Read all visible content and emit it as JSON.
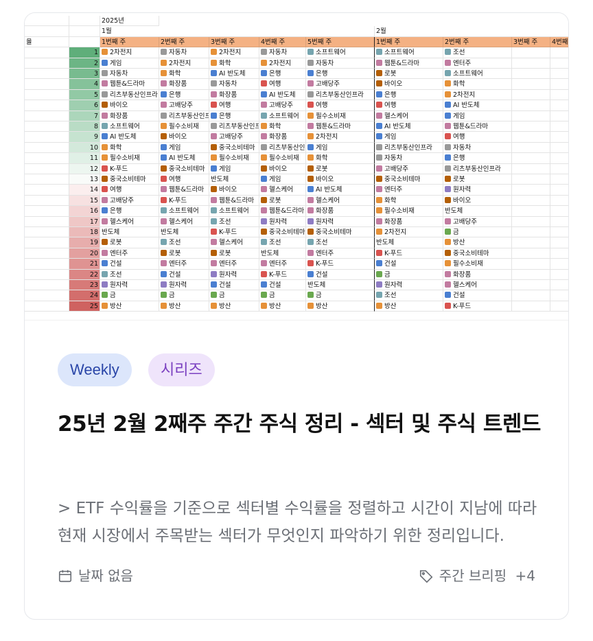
{
  "sheet": {
    "year": "2025년",
    "left_header": "율",
    "months": [
      "1월",
      "2월"
    ],
    "week_headers": [
      "1번째 주",
      "2번째 주",
      "3번째 주",
      "4번째 주",
      "5번째 주",
      "1번째 주",
      "2번째 주",
      "3번째 주",
      "4번째 주"
    ],
    "rank_colors": [
      "#5fae7a",
      "#6cb585",
      "#78bb8f",
      "#85c29a",
      "#92c9a5",
      "#9fcfb0",
      "#acd6bb",
      "#b9dcc5",
      "#c6e3d0",
      "#d3e9db",
      "#e0f0e6",
      "#edf6f0",
      "#f9fbf9",
      "#fbeeee",
      "#f7e1e1",
      "#f3d4d4",
      "#efc7c6",
      "#ebbab9",
      "#e7adac",
      "#e3a09f",
      "#df9392",
      "#db8685",
      "#d77a78",
      "#d36e6c",
      "#cf6260"
    ],
    "rows": [
      [
        "1",
        "2차전지",
        "자동차",
        "2차전지",
        "자동차",
        "소프트웨어",
        "소프트웨어",
        "조선"
      ],
      [
        "2",
        "게임",
        "2차전지",
        "화학",
        "2차전지",
        "자동차",
        "웹툰&드라마",
        "엔터주"
      ],
      [
        "3",
        "자동차",
        "화학",
        "AI 반도체",
        "은행",
        "은행",
        "로봇",
        "소프트웨어"
      ],
      [
        "4",
        "웹툰&드라마",
        "화장품",
        "자동차",
        "여행",
        "고배당주",
        "바이오",
        "화학"
      ],
      [
        "5",
        "리츠부동산인프라",
        "은행",
        "화장품",
        "AI 반도체",
        "리츠부동산인프라",
        "은행",
        "2차전지"
      ],
      [
        "6",
        "바이오",
        "고배당주",
        "여행",
        "고배당주",
        "여행",
        "여행",
        "AI 반도체"
      ],
      [
        "7",
        "화장품",
        "리츠부동산인프라",
        "은행",
        "소프트웨어",
        "필수소비재",
        "헬스케어",
        "게임"
      ],
      [
        "8",
        "소프트웨어",
        "필수소비재",
        "리츠부동산인프라",
        "화학",
        "웹툰&드라마",
        "AI 반도체",
        "웹툰&드라마"
      ],
      [
        "9",
        "AI 반도체",
        "바이오",
        "고배당주",
        "화장품",
        "2차전지",
        "게임",
        "여행"
      ],
      [
        "10",
        "화학",
        "게임",
        "중국소비테마",
        "리츠부동산인프라",
        "게임",
        "리츠부동산인프라",
        "자동차"
      ],
      [
        "11",
        "필수소비재",
        "AI 반도체",
        "필수소비재",
        "필수소비재",
        "화학",
        "자동차",
        "은행"
      ],
      [
        "12",
        "K-푸드",
        "중국소비테마",
        "게임",
        "바이오",
        "로봇",
        "고배당주",
        "리츠부동산인프라"
      ],
      [
        "13",
        "중국소비테마",
        "여행",
        "반도체",
        "게임",
        "바이오",
        "중국소비테마",
        "로봇"
      ],
      [
        "14",
        "여행",
        "웹툰&드라마",
        "바이오",
        "헬스케어",
        "AI 반도체",
        "엔터주",
        "원자력"
      ],
      [
        "15",
        "고배당주",
        "K-푸드",
        "웹툰&드라마",
        "로봇",
        "헬스케어",
        "화학",
        "바이오"
      ],
      [
        "16",
        "은행",
        "소프트웨어",
        "소프트웨어",
        "웹툰&드라마",
        "화장품",
        "필수소비재",
        "반도체"
      ],
      [
        "17",
        "헬스케어",
        "헬스케어",
        "조선",
        "원자력",
        "원자력",
        "화장품",
        "고배당주"
      ],
      [
        "18",
        "반도체",
        "반도체",
        "K-푸드",
        "중국소비테마",
        "중국소비테마",
        "2차전지",
        "금"
      ],
      [
        "19",
        "로봇",
        "조선",
        "헬스케어",
        "조선",
        "조선",
        "반도체",
        "방산"
      ],
      [
        "20",
        "엔터주",
        "로봇",
        "로봇",
        "반도체",
        "엔터주",
        "K-푸드",
        "중국소비테마"
      ],
      [
        "21",
        "건설",
        "엔터주",
        "엔터주",
        "엔터주",
        "K-푸드",
        "건설",
        "필수소비재"
      ],
      [
        "22",
        "조선",
        "건설",
        "원자력",
        "K-푸드",
        "건설",
        "금",
        "화장품"
      ],
      [
        "23",
        "원자력",
        "원자력",
        "건설",
        "건설",
        "반도체",
        "원자력",
        "헬스케어"
      ],
      [
        "24",
        "금",
        "금",
        "금",
        "금",
        "금",
        "조선",
        "건설"
      ],
      [
        "25",
        "방산",
        "방산",
        "방산",
        "방산",
        "방산",
        "방산",
        "K-푸드"
      ]
    ]
  },
  "tags": {
    "weekly": "Weekly",
    "series": "시리즈"
  },
  "post": {
    "title": "25년 2월 2째주 주간 주식 정리 - 섹터 및 주식 트렌드",
    "excerpt": "> ETF 수익률을 기준으로 섹터별 수익률을 정렬하고 시간이 지남에 따라 현재 시장에서 주목받는 섹터가 무엇인지 파악하기 위한 정리입니다.",
    "date": "날짜 없음",
    "category": "주간 브리핑",
    "more_tags": "+4"
  },
  "colors": {
    "header_orange": "#f4b183",
    "tag_weekly_bg": "#dce6fb",
    "tag_weekly_fg": "#2a46a8",
    "tag_series_bg": "#efe4fb",
    "tag_series_fg": "#7a3fc0",
    "muted_text": "#6b6f76"
  },
  "icons": {
    "date": "calendar-icon",
    "tags": "tag-icon"
  }
}
